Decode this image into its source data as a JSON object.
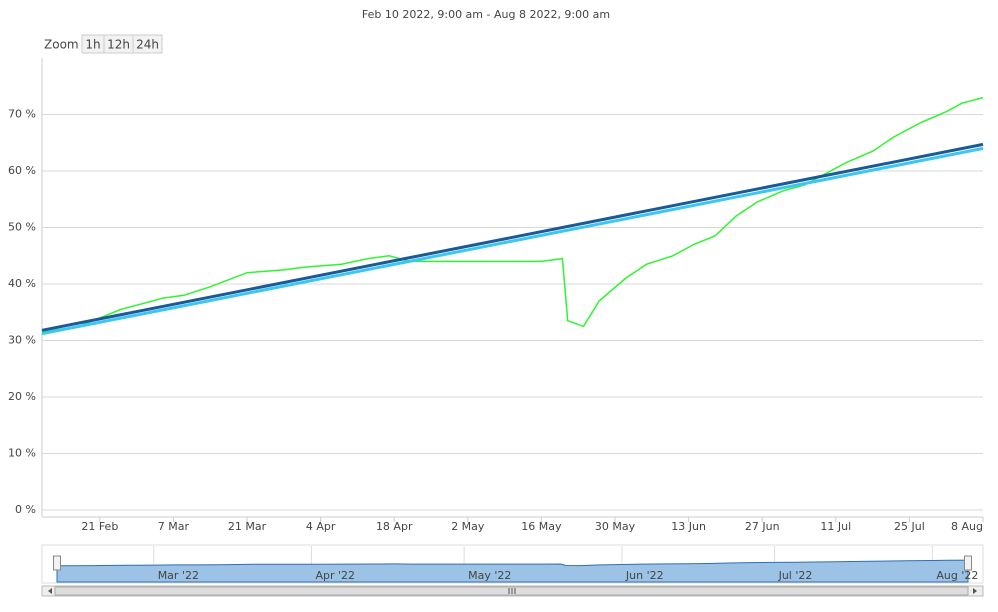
{
  "chart_data": {
    "type": "line",
    "title": "Feb 10 2022, 9:00 am - Aug 8 2022, 9:00 am",
    "zoom": {
      "label": "Zoom",
      "buttons": [
        "1h",
        "12h",
        "24h"
      ]
    },
    "xlim": [
      "2022-02-10",
      "2022-08-08"
    ],
    "xticks": [
      {
        "value": "2022-02-21",
        "label": "21 Feb"
      },
      {
        "value": "2022-03-07",
        "label": "7 Mar"
      },
      {
        "value": "2022-03-21",
        "label": "21 Mar"
      },
      {
        "value": "2022-04-04",
        "label": "4 Apr"
      },
      {
        "value": "2022-04-18",
        "label": "18 Apr"
      },
      {
        "value": "2022-05-02",
        "label": "2 May"
      },
      {
        "value": "2022-05-16",
        "label": "16 May"
      },
      {
        "value": "2022-05-30",
        "label": "30 May"
      },
      {
        "value": "2022-06-13",
        "label": "13 Jun"
      },
      {
        "value": "2022-06-27",
        "label": "27 Jun"
      },
      {
        "value": "2022-07-11",
        "label": "11 Jul"
      },
      {
        "value": "2022-07-25",
        "label": "25 Jul"
      },
      {
        "value": "2022-08-08",
        "label": "8 Aug"
      }
    ],
    "ylim": [
      0,
      80
    ],
    "yticks": [
      {
        "value": 0,
        "label": "0 %"
      },
      {
        "value": 10,
        "label": "10 %"
      },
      {
        "value": 20,
        "label": "20 %"
      },
      {
        "value": 30,
        "label": "30 %"
      },
      {
        "value": 40,
        "label": "40 %"
      },
      {
        "value": 50,
        "label": "50 %"
      },
      {
        "value": 60,
        "label": "60 %"
      },
      {
        "value": 70,
        "label": "70 %"
      }
    ],
    "grid": true,
    "series": [
      {
        "color": "#2ef52e",
        "x": [
          "2022-02-10",
          "2022-02-17",
          "2022-02-21",
          "2022-02-25",
          "2022-03-01",
          "2022-03-05",
          "2022-03-09",
          "2022-03-14",
          "2022-03-21",
          "2022-03-28",
          "2022-04-01",
          "2022-04-08",
          "2022-04-13",
          "2022-04-17",
          "2022-04-21",
          "2022-04-27",
          "2022-05-02",
          "2022-05-09",
          "2022-05-16",
          "2022-05-20",
          "2022-05-21",
          "2022-05-24",
          "2022-05-27",
          "2022-06-01",
          "2022-06-05",
          "2022-06-10",
          "2022-06-14",
          "2022-06-18",
          "2022-06-22",
          "2022-06-26",
          "2022-07-01",
          "2022-07-05",
          "2022-07-09",
          "2022-07-13",
          "2022-07-18",
          "2022-07-22",
          "2022-07-27",
          "2022-08-01",
          "2022-08-04",
          "2022-08-08"
        ],
        "values": [
          31.5,
          32.5,
          34,
          35.5,
          36.5,
          37.5,
          38,
          39.5,
          42,
          42.5,
          43,
          43.5,
          44.5,
          45,
          44,
          44,
          44,
          44,
          44,
          44.5,
          33.5,
          32.5,
          37,
          41,
          43.5,
          45,
          47,
          48.5,
          52,
          54.5,
          56.5,
          57.5,
          59.5,
          61.5,
          63.5,
          66,
          68.5,
          70.5,
          72,
          73
        ]
      },
      {
        "color": "#3dc6ef",
        "x": [
          "2022-02-10",
          "2022-08-08"
        ],
        "values": [
          31.2,
          64.0
        ]
      },
      {
        "color": "#1a5a96",
        "x": [
          "2022-02-10",
          "2022-08-08"
        ],
        "values": [
          31.8,
          64.7
        ]
      }
    ],
    "navigator": {
      "color": "#9cc3e6",
      "ticks": [
        {
          "value": "2022-03-01",
          "label": "Mar '22"
        },
        {
          "value": "2022-04-01",
          "label": "Apr '22"
        },
        {
          "value": "2022-05-01",
          "label": "May '22"
        },
        {
          "value": "2022-06-01",
          "label": "Jun '22"
        },
        {
          "value": "2022-07-01",
          "label": "Jul '22"
        },
        {
          "value": "2022-08-01",
          "label": "Aug '22"
        }
      ]
    }
  }
}
